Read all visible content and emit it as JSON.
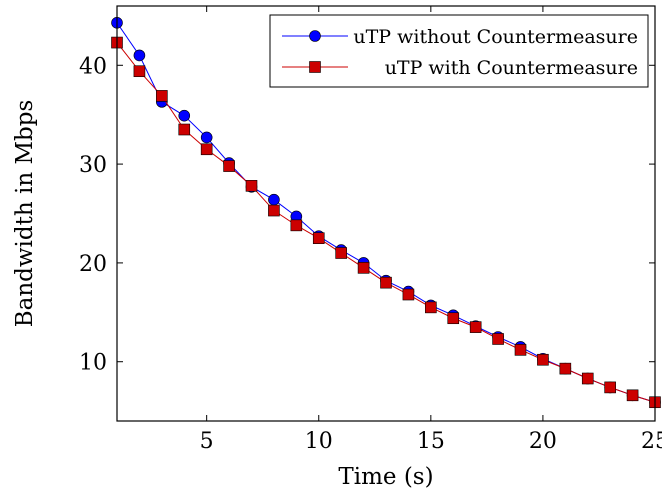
{
  "chart_data": {
    "type": "line",
    "xlabel": "Time (s)",
    "ylabel": "Bandwidth in Mbps",
    "xlim": [
      1,
      25
    ],
    "ylim": [
      4,
      46
    ],
    "xticks": [
      5,
      10,
      15,
      20,
      25
    ],
    "yticks": [
      10,
      20,
      30,
      40
    ],
    "grid": false,
    "legend_position": "top-right",
    "x": [
      1,
      2,
      3,
      4,
      5,
      6,
      7,
      8,
      9,
      10,
      11,
      12,
      13,
      14,
      15,
      16,
      17,
      18,
      19,
      20,
      21,
      22,
      23,
      24,
      25
    ],
    "series": [
      {
        "name": "uTP without Countermeasure",
        "color": "#0000ff",
        "marker": "circle",
        "values": [
          44.3,
          41.0,
          36.3,
          34.9,
          32.7,
          30.1,
          27.7,
          26.4,
          24.7,
          22.7,
          21.3,
          20.0,
          18.2,
          17.1,
          15.7,
          14.7,
          13.6,
          12.5,
          11.5,
          10.3,
          9.3,
          8.3,
          7.4,
          6.6,
          5.9
        ]
      },
      {
        "name": "uTP with Countermeasure",
        "color": "#cc0000",
        "marker": "square",
        "values": [
          42.3,
          39.4,
          36.9,
          33.5,
          31.5,
          29.8,
          27.8,
          25.3,
          23.8,
          22.5,
          21.0,
          19.5,
          18.0,
          16.8,
          15.5,
          14.4,
          13.5,
          12.3,
          11.2,
          10.2,
          9.3,
          8.3,
          7.4,
          6.6,
          5.9
        ]
      }
    ]
  }
}
